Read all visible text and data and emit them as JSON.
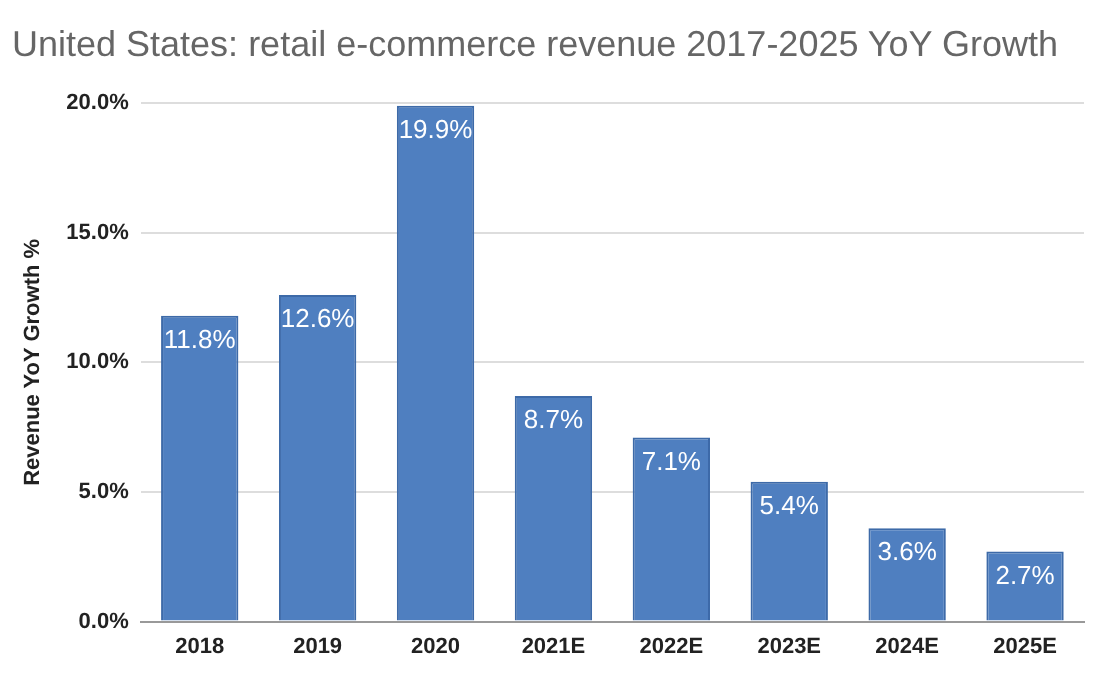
{
  "chart_data": {
    "type": "bar",
    "title": "United States: retail e-commerce revenue 2017-2025 YoY Growth",
    "ylabel": "Revenue YoY Growth %",
    "categories": [
      "2018",
      "2019",
      "2020",
      "2021E",
      "2022E",
      "2023E",
      "2024E",
      "2025E"
    ],
    "values": [
      11.8,
      12.6,
      19.9,
      8.7,
      7.1,
      5.4,
      3.6,
      2.7
    ],
    "value_labels": [
      "11.8%",
      "12.6%",
      "19.9%",
      "8.7%",
      "7.1%",
      "5.4%",
      "3.6%",
      "2.7%"
    ],
    "color": "#4f7fc0",
    "ylim": [
      0,
      20
    ],
    "yticks": [
      {
        "value": 0,
        "label": "0.0%"
      },
      {
        "value": 5,
        "label": "5.0%"
      },
      {
        "value": 10,
        "label": "10.0%"
      },
      {
        "value": 15,
        "label": "15.0%"
      },
      {
        "value": 20,
        "label": "20.0%"
      }
    ],
    "grid": "y"
  }
}
